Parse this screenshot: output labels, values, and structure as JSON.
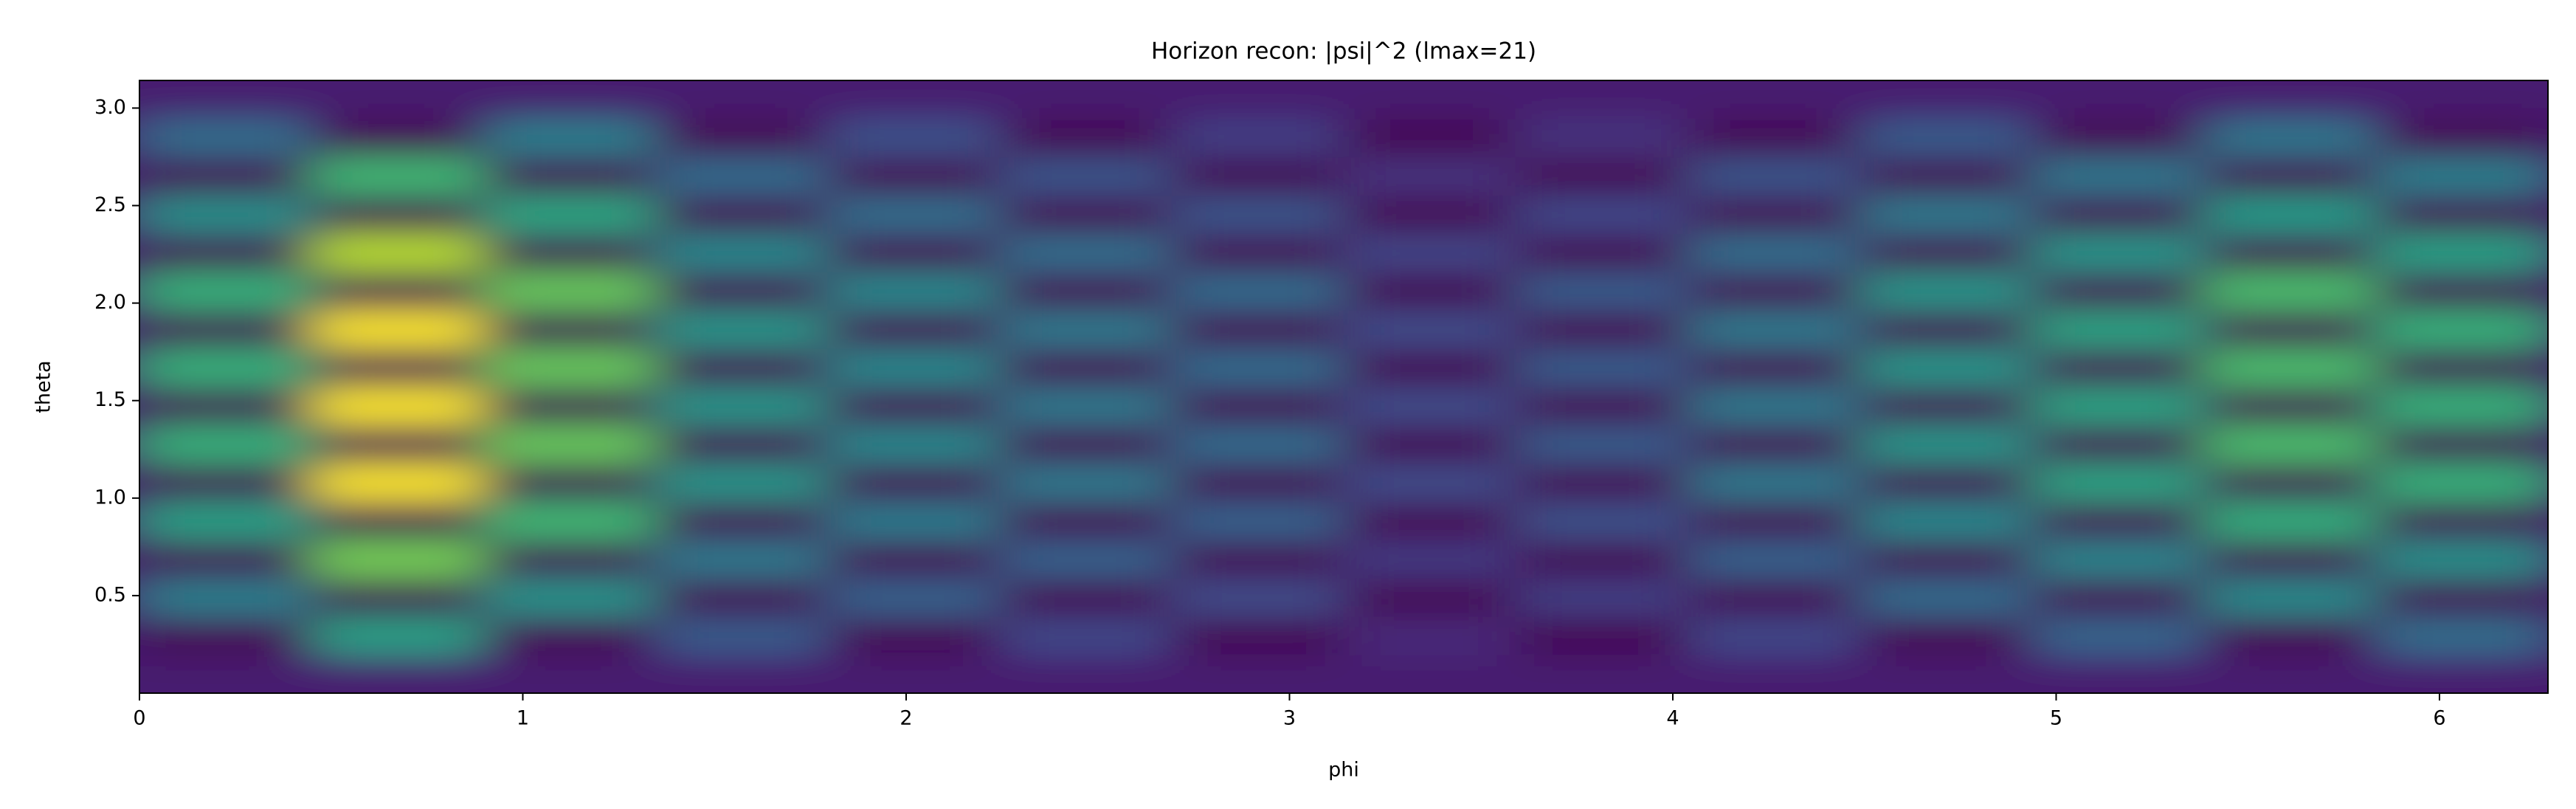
{
  "chart_data": {
    "type": "heatmap",
    "title": "Horizon recon: |psi|^2 (lmax=21)",
    "xlabel": "phi",
    "ylabel": "theta",
    "xlim": [
      0,
      6.283
    ],
    "ylim": [
      0,
      3.1416
    ],
    "xticks": [
      0,
      1,
      2,
      3,
      4,
      5,
      6
    ],
    "yticks": [
      0.5,
      {
        "value": 1,
        "label": "1.0"
      },
      1.5,
      {
        "value": 2,
        "label": "2.0"
      },
      2.5,
      {
        "value": 3,
        "label": "3.0"
      }
    ],
    "colormap": [
      "#440154",
      "#482878",
      "#3e4989",
      "#31688e",
      "#26828e",
      "#1f9e89",
      "#35b779",
      "#6ece58",
      "#b5de2b",
      "#fde725"
    ],
    "z": [
      [
        0.12,
        0.12,
        0.12,
        0.12,
        0.12,
        0.12,
        0.12,
        0.12,
        0.12,
        0.12,
        0.12,
        0.12,
        0.12,
        0.12
      ],
      [
        0.05,
        0.54,
        0.05,
        0.3,
        0.05,
        0.24,
        0.05,
        0.15,
        0.05,
        0.24,
        0.05,
        0.33,
        0.05,
        0.36
      ],
      [
        0.42,
        0.05,
        0.49,
        0.05,
        0.32,
        0.05,
        0.25,
        0.05,
        0.21,
        0.05,
        0.35,
        0.05,
        0.46,
        0.05
      ],
      [
        0.05,
        0.72,
        0.05,
        0.4,
        0.05,
        0.32,
        0.05,
        0.2,
        0.05,
        0.32,
        0.05,
        0.44,
        0.05,
        0.48
      ],
      [
        0.54,
        0.05,
        0.63,
        0.05,
        0.41,
        0.05,
        0.32,
        0.05,
        0.27,
        0.05,
        0.45,
        0.05,
        0.59,
        0.05
      ],
      [
        0.05,
        0.9,
        0.05,
        0.5,
        0.05,
        0.4,
        0.05,
        0.25,
        0.05,
        0.4,
        0.05,
        0.55,
        0.05,
        0.6
      ],
      [
        0.6,
        0.05,
        0.7,
        0.05,
        0.45,
        0.05,
        0.35,
        0.05,
        0.3,
        0.05,
        0.5,
        0.05,
        0.65,
        0.05
      ],
      [
        0.05,
        0.9,
        0.05,
        0.5,
        0.05,
        0.4,
        0.05,
        0.25,
        0.05,
        0.4,
        0.05,
        0.55,
        0.05,
        0.6
      ],
      [
        0.6,
        0.05,
        0.7,
        0.05,
        0.45,
        0.05,
        0.35,
        0.05,
        0.3,
        0.05,
        0.5,
        0.05,
        0.65,
        0.05
      ],
      [
        0.05,
        0.9,
        0.05,
        0.5,
        0.05,
        0.4,
        0.05,
        0.25,
        0.05,
        0.4,
        0.05,
        0.55,
        0.05,
        0.6
      ],
      [
        0.6,
        0.05,
        0.7,
        0.05,
        0.45,
        0.05,
        0.35,
        0.05,
        0.3,
        0.05,
        0.5,
        0.05,
        0.65,
        0.05
      ],
      [
        0.05,
        0.81,
        0.05,
        0.45,
        0.05,
        0.36,
        0.05,
        0.23,
        0.05,
        0.36,
        0.05,
        0.5,
        0.05,
        0.54
      ],
      [
        0.48,
        0.05,
        0.56,
        0.05,
        0.36,
        0.05,
        0.28,
        0.05,
        0.24,
        0.05,
        0.4,
        0.05,
        0.52,
        0.05
      ],
      [
        0.05,
        0.63,
        0.05,
        0.35,
        0.05,
        0.28,
        0.05,
        0.18,
        0.05,
        0.28,
        0.05,
        0.39,
        0.05,
        0.42
      ],
      [
        0.36,
        0.05,
        0.42,
        0.05,
        0.27,
        0.05,
        0.21,
        0.05,
        0.18,
        0.05,
        0.3,
        0.05,
        0.39,
        0.05
      ],
      [
        0.12,
        0.12,
        0.12,
        0.12,
        0.12,
        0.12,
        0.12,
        0.12,
        0.12,
        0.12,
        0.12,
        0.12,
        0.12,
        0.12
      ]
    ]
  }
}
